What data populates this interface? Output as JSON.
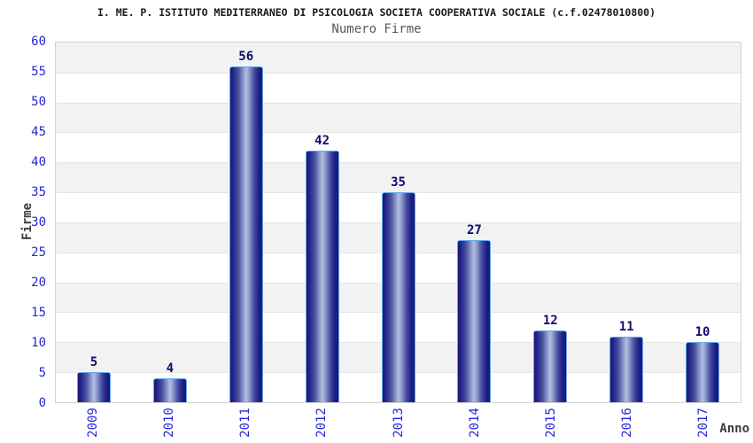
{
  "header": {
    "title": "I. ME. P. ISTITUTO MEDITERRANEO DI PSICOLOGIA SOCIETA COOPERATIVA SOCIALE (c.f.02478010800)",
    "subtitle": "Numero Firme"
  },
  "chart_data": {
    "type": "bar",
    "title": "Numero Firme",
    "categories": [
      "2009",
      "2010",
      "2011",
      "2012",
      "2013",
      "2014",
      "2015",
      "2016",
      "2017"
    ],
    "values": [
      5,
      4,
      56,
      42,
      35,
      27,
      12,
      11,
      10
    ],
    "xlabel": "Anno",
    "ylabel": "Firme",
    "ylim": [
      0,
      60
    ],
    "ytick_step": 5,
    "yticks": [
      0,
      5,
      10,
      15,
      20,
      25,
      30,
      35,
      40,
      45,
      50,
      55,
      60
    ],
    "grid": "horizontal-bands-alternating",
    "legend": "none"
  },
  "theme": {
    "accent_blue": "#2626d8",
    "value_label_navy": "#0d0d70",
    "bar_border_blue": "#5ea8ee",
    "bar_dark_navy": "#1a1a78",
    "bar_light_blue": "#b2bce2",
    "band_gray": "#f2f2f2",
    "grid_line": "#e6e6e6",
    "plot_border": "#d2d2d2",
    "axis_label_gray": "#3d3d3d",
    "subtitle_gray": "#595959",
    "title_black": "#1a1a1a"
  }
}
